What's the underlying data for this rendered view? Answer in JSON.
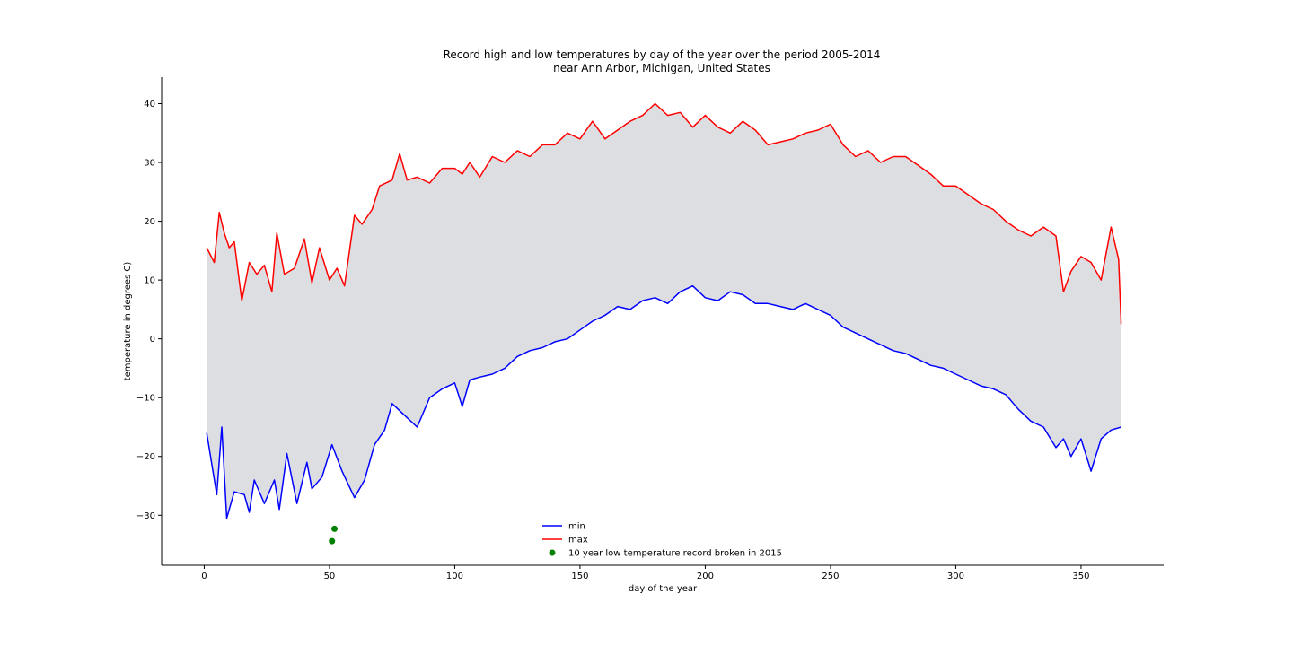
{
  "chart_data": {
    "type": "line",
    "title": "Record high and low temperatures by day of the year over the period 2005-2014",
    "subtitle": "near Ann Arbor, Michigan, United States",
    "xlabel": "day of the year",
    "ylabel": "temperature in degrees C)",
    "xlim": [
      -17,
      383
    ],
    "ylim": [
      -38.5,
      44.5
    ],
    "xticks": [
      0,
      50,
      100,
      150,
      200,
      250,
      300,
      350
    ],
    "yticks": [
      -30,
      -20,
      -10,
      0,
      10,
      20,
      30,
      40
    ],
    "xtick_labels": [
      "0",
      "50",
      "100",
      "150",
      "200",
      "250",
      "300",
      "350"
    ],
    "ytick_labels": [
      "−30",
      "−20",
      "−10",
      "0",
      "10",
      "20",
      "30",
      "40"
    ],
    "grid": false,
    "fill_between": true,
    "legend_position": "lower-center",
    "series": [
      {
        "name": "min",
        "color": "#0000ff",
        "x": [
          1,
          5,
          7,
          9,
          12,
          16,
          18,
          20,
          24,
          28,
          30,
          33,
          37,
          41,
          43,
          47,
          51,
          55,
          60,
          64,
          68,
          72,
          75,
          80,
          85,
          90,
          95,
          100,
          103,
          106,
          110,
          115,
          120,
          125,
          130,
          135,
          140,
          145,
          150,
          155,
          160,
          165,
          170,
          175,
          180,
          185,
          190,
          195,
          200,
          205,
          210,
          215,
          220,
          225,
          230,
          235,
          240,
          245,
          250,
          255,
          260,
          265,
          270,
          275,
          280,
          285,
          290,
          295,
          300,
          305,
          310,
          315,
          320,
          325,
          330,
          335,
          340,
          343,
          346,
          350,
          354,
          358,
          362,
          366
        ],
        "y": [
          -16,
          -26.5,
          -15,
          -30.5,
          -26,
          -26.5,
          -29.5,
          -24,
          -28,
          -24,
          -29,
          -19.5,
          -28,
          -21,
          -25.5,
          -23.5,
          -18,
          -22.5,
          -27,
          -24,
          -18,
          -15.5,
          -11,
          -13,
          -15,
          -10,
          -8.5,
          -7.5,
          -11.5,
          -7,
          -6.5,
          -6,
          -5,
          -3,
          -2,
          -1.5,
          -0.5,
          0,
          1.5,
          3,
          4,
          5.5,
          5,
          6.5,
          7,
          6,
          8,
          9,
          7,
          6.5,
          8,
          7.5,
          6,
          6,
          5.5,
          5,
          6,
          5,
          4,
          2,
          1,
          0,
          -1,
          -2,
          -2.5,
          -3.5,
          -4.5,
          -5,
          -6,
          -7,
          -8,
          -8.5,
          -9.5,
          -12,
          -14,
          -15,
          -18.5,
          -17,
          -20,
          -17,
          -22.5,
          -17,
          -15.5,
          -15
        ]
      },
      {
        "name": "max",
        "color": "#ff0000",
        "x": [
          1,
          4,
          6,
          8,
          10,
          12,
          15,
          18,
          21,
          24,
          27,
          29,
          32,
          36,
          40,
          43,
          46,
          50,
          53,
          56,
          60,
          63,
          67,
          70,
          75,
          78,
          81,
          85,
          90,
          95,
          100,
          103,
          106,
          110,
          115,
          120,
          125,
          130,
          135,
          140,
          145,
          150,
          155,
          160,
          165,
          170,
          175,
          180,
          185,
          190,
          195,
          200,
          205,
          210,
          215,
          220,
          225,
          230,
          235,
          240,
          245,
          250,
          255,
          260,
          265,
          270,
          275,
          280,
          285,
          290,
          295,
          300,
          305,
          310,
          315,
          320,
          325,
          330,
          335,
          340,
          343,
          346,
          350,
          354,
          358,
          362,
          365,
          366
        ],
        "y": [
          15.5,
          13,
          21.5,
          18,
          15.5,
          16.5,
          6.5,
          13,
          11,
          12.5,
          8,
          18,
          11,
          12,
          17,
          9.5,
          15.5,
          10,
          12,
          9,
          21,
          19.5,
          22,
          26,
          27,
          31.5,
          27,
          27.5,
          26.5,
          29,
          29,
          28,
          30,
          27.5,
          31,
          30,
          32,
          31,
          33,
          33,
          35,
          34,
          37,
          34,
          35.5,
          37,
          38,
          40,
          38,
          38.5,
          36,
          38,
          36,
          35,
          37,
          35.5,
          33,
          33.5,
          34,
          35,
          35.5,
          36.5,
          33,
          31,
          32,
          30,
          31,
          31,
          29.5,
          28,
          26,
          26,
          24.5,
          23,
          22,
          20,
          18.5,
          17.5,
          19,
          17.5,
          8,
          11.5,
          14,
          13,
          10,
          19,
          13.5,
          2.5
        ]
      }
    ],
    "points": {
      "name": "10 year low temperature record broken in 2015",
      "color": "#008000",
      "x": [
        51,
        52
      ],
      "y": [
        -34.4,
        -32.3
      ]
    },
    "legend": [
      {
        "label": "min",
        "color": "#0000ff",
        "marker": "line"
      },
      {
        "label": "max",
        "color": "#ff0000",
        "marker": "line"
      },
      {
        "label": "10 year low temperature record broken in 2015",
        "color": "#008000",
        "marker": "dot"
      }
    ],
    "fill_color": "#dcdee2"
  }
}
